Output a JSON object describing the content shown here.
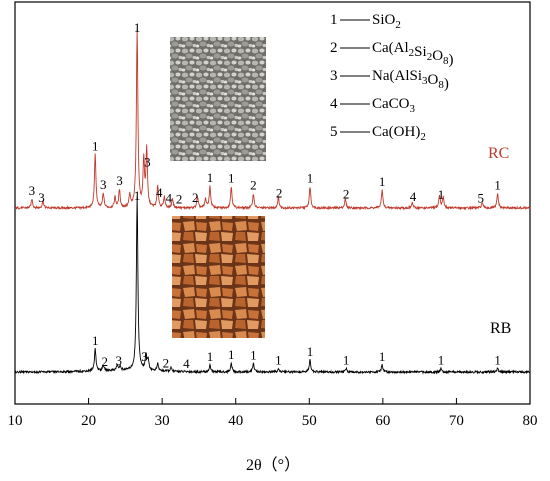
{
  "chart_data": {
    "type": "line",
    "title": "",
    "xlabel": "2θ（°）",
    "ylabel": "",
    "xlim": [
      10,
      80
    ],
    "xticks": [
      "10",
      "20",
      "30",
      "40",
      "50",
      "60",
      "70",
      "80"
    ],
    "legend": {
      "placement": "top-right",
      "entries": [
        {
          "num": "1",
          "formula": "SiO",
          "sub": "2"
        },
        {
          "num": "2",
          "formula": "Ca(Al",
          "sub": "2",
          "formula2": "Si",
          "sub2": "2",
          "formula3": "O",
          "sub3": "8",
          "formula4": ")"
        },
        {
          "num": "3",
          "formula": "Na(AlSi",
          "sub": "3",
          "formula2": "O",
          "sub2": "8",
          "formula3": ")"
        },
        {
          "num": "4",
          "formula": "CaCO",
          "sub": "3"
        },
        {
          "num": "5",
          "formula": "Ca(OH)",
          "sub": "2"
        }
      ]
    },
    "series": [
      {
        "name": "RC",
        "color": "#c0392b",
        "baseline_level": 0.0,
        "peaks": [
          {
            "x": 12.3,
            "h": 0.05
          },
          {
            "x": 13.8,
            "h": 0.04
          },
          {
            "x": 20.9,
            "h": 0.3
          },
          {
            "x": 22.0,
            "h": 0.08
          },
          {
            "x": 23.6,
            "h": 0.06
          },
          {
            "x": 24.2,
            "h": 0.1
          },
          {
            "x": 25.6,
            "h": 0.07
          },
          {
            "x": 26.6,
            "h": 1.0
          },
          {
            "x": 27.5,
            "h": 0.26
          },
          {
            "x": 27.9,
            "h": 0.32
          },
          {
            "x": 29.4,
            "h": 0.12
          },
          {
            "x": 30.3,
            "h": 0.06
          },
          {
            "x": 31.4,
            "h": 0.05
          },
          {
            "x": 34.8,
            "h": 0.06
          },
          {
            "x": 35.9,
            "h": 0.05
          },
          {
            "x": 36.5,
            "h": 0.12
          },
          {
            "x": 39.4,
            "h": 0.12
          },
          {
            "x": 42.4,
            "h": 0.08
          },
          {
            "x": 45.8,
            "h": 0.06
          },
          {
            "x": 50.1,
            "h": 0.12
          },
          {
            "x": 54.9,
            "h": 0.05
          },
          {
            "x": 59.9,
            "h": 0.1
          },
          {
            "x": 64.0,
            "h": 0.03
          },
          {
            "x": 67.7,
            "h": 0.07
          },
          {
            "x": 68.2,
            "h": 0.06
          },
          {
            "x": 73.5,
            "h": 0.03
          },
          {
            "x": 75.6,
            "h": 0.08
          }
        ],
        "peak_labels": [
          {
            "x": 12.3,
            "text": "3"
          },
          {
            "x": 13.6,
            "text": "3"
          },
          {
            "x": 20.9,
            "text": "1"
          },
          {
            "x": 22.0,
            "text": "3"
          },
          {
            "x": 24.2,
            "text": "3"
          },
          {
            "x": 26.6,
            "text": "1"
          },
          {
            "x": 28.0,
            "text": "3"
          },
          {
            "x": 29.6,
            "text": "4"
          },
          {
            "x": 30.9,
            "text": "4"
          },
          {
            "x": 32.3,
            "text": "2"
          },
          {
            "x": 34.5,
            "text": "2"
          },
          {
            "x": 36.5,
            "text": "1"
          },
          {
            "x": 39.4,
            "text": "1"
          },
          {
            "x": 42.4,
            "text": "2"
          },
          {
            "x": 45.9,
            "text": "2"
          },
          {
            "x": 50.1,
            "text": "1"
          },
          {
            "x": 55.0,
            "text": "2"
          },
          {
            "x": 59.9,
            "text": "1"
          },
          {
            "x": 64.1,
            "text": "4"
          },
          {
            "x": 67.9,
            "text": "1"
          },
          {
            "x": 73.3,
            "text": "5"
          },
          {
            "x": 75.6,
            "text": "1"
          }
        ]
      },
      {
        "name": "RB",
        "color": "#000000",
        "baseline_level": 0.0,
        "peaks": [
          {
            "x": 20.9,
            "h": 0.13
          },
          {
            "x": 22.0,
            "h": 0.03
          },
          {
            "x": 23.9,
            "h": 0.03
          },
          {
            "x": 24.3,
            "h": 0.02
          },
          {
            "x": 26.6,
            "h": 1.0
          },
          {
            "x": 27.8,
            "h": 0.09
          },
          {
            "x": 28.1,
            "h": 0.06
          },
          {
            "x": 29.4,
            "h": 0.04
          },
          {
            "x": 31.2,
            "h": 0.02
          },
          {
            "x": 36.5,
            "h": 0.04
          },
          {
            "x": 39.4,
            "h": 0.05
          },
          {
            "x": 42.4,
            "h": 0.05
          },
          {
            "x": 45.8,
            "h": 0.02
          },
          {
            "x": 50.1,
            "h": 0.07
          },
          {
            "x": 55.0,
            "h": 0.02
          },
          {
            "x": 59.9,
            "h": 0.04
          },
          {
            "x": 67.9,
            "h": 0.02
          },
          {
            "x": 75.6,
            "h": 0.02
          }
        ],
        "peak_labels": [
          {
            "x": 20.9,
            "text": "1"
          },
          {
            "x": 22.2,
            "text": "2"
          },
          {
            "x": 24.1,
            "text": "3"
          },
          {
            "x": 26.6,
            "text": "1"
          },
          {
            "x": 27.6,
            "text": "3"
          },
          {
            "x": 30.5,
            "text": "2"
          },
          {
            "x": 33.3,
            "text": "4"
          },
          {
            "x": 36.5,
            "text": "1"
          },
          {
            "x": 39.4,
            "text": "1"
          },
          {
            "x": 42.4,
            "text": "1"
          },
          {
            "x": 45.8,
            "text": "1"
          },
          {
            "x": 50.1,
            "text": "1"
          },
          {
            "x": 55.0,
            "text": "1"
          },
          {
            "x": 59.9,
            "text": "1"
          },
          {
            "x": 67.9,
            "text": "1"
          },
          {
            "x": 75.6,
            "text": "1"
          }
        ]
      }
    ],
    "insets": [
      {
        "series": "RC",
        "description": "photo-gray-aggregate",
        "color_main": "#8c8c88"
      },
      {
        "series": "RB",
        "description": "photo-brick-aggregate",
        "color_main": "#b8642e"
      }
    ],
    "grid": false
  }
}
